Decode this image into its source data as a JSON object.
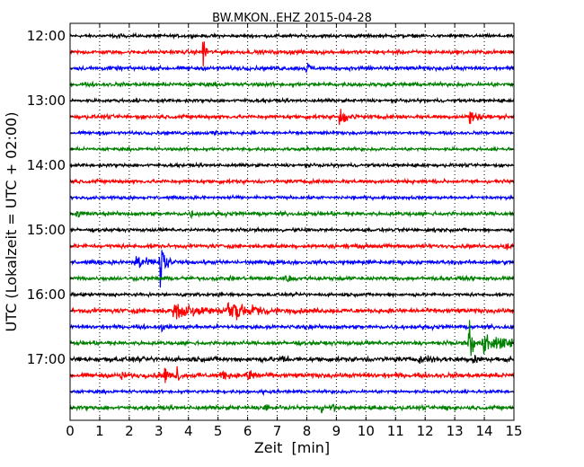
{
  "chart_data": {
    "type": "line",
    "title": "BW.MKON..EHZ 2015-04-28",
    "xlabel": "Zeit  [min]",
    "ylabel": "UTC (Lokalzeit = UTC + 02:00)",
    "xlim": [
      0,
      15
    ],
    "x_ticks": [
      0,
      1,
      2,
      3,
      4,
      5,
      6,
      7,
      8,
      9,
      10,
      11,
      12,
      13,
      14,
      15
    ],
    "x_tick_labels": [
      "0",
      "1",
      "2",
      "3",
      "4",
      "5",
      "6",
      "7",
      "8",
      "9",
      "10",
      "11",
      "12",
      "13",
      "14",
      "15"
    ],
    "y_tick_labels": [
      "12:00",
      "13:00",
      "14:00",
      "15:00",
      "16:00",
      "17:00"
    ],
    "trace_interval_minutes": 15,
    "grid": "vertical dotted",
    "legend": "none",
    "color_cycle": [
      "#000000",
      "#ff0000",
      "#0000ff",
      "#008000"
    ],
    "series": [
      {
        "start": "12:00",
        "noise": 0.2,
        "events": [
          {
            "t": 1.6,
            "amp": 0.3,
            "dur": 0.15
          }
        ]
      },
      {
        "start": "12:15",
        "noise": 0.25,
        "events": [
          {
            "t": 4.5,
            "amp": 1.6,
            "dur": 0.1
          }
        ]
      },
      {
        "start": "12:30",
        "noise": 0.25,
        "events": [
          {
            "t": 8.0,
            "amp": 0.9,
            "dur": 0.1
          },
          {
            "t": 9.8,
            "amp": 0.35,
            "dur": 0.3
          }
        ]
      },
      {
        "start": "12:45",
        "noise": 0.25,
        "events": []
      },
      {
        "start": "13:00",
        "noise": 0.2,
        "events": []
      },
      {
        "start": "13:15",
        "noise": 0.25,
        "events": [
          {
            "t": 9.1,
            "amp": 0.8,
            "dur": 0.3
          },
          {
            "t": 13.5,
            "amp": 0.7,
            "dur": 0.3
          }
        ]
      },
      {
        "start": "13:30",
        "noise": 0.2,
        "events": [
          {
            "t": 4.9,
            "amp": 0.3,
            "dur": 0.1
          }
        ]
      },
      {
        "start": "13:45",
        "noise": 0.2,
        "events": []
      },
      {
        "start": "14:00",
        "noise": 0.2,
        "events": []
      },
      {
        "start": "14:15",
        "noise": 0.25,
        "events": []
      },
      {
        "start": "14:30",
        "noise": 0.2,
        "events": []
      },
      {
        "start": "14:45",
        "noise": 0.25,
        "events": [
          {
            "t": 0.2,
            "amp": 0.35,
            "dur": 0.3
          },
          {
            "t": 4.1,
            "amp": 0.3,
            "dur": 0.1
          }
        ]
      },
      {
        "start": "15:00",
        "noise": 0.2,
        "events": [
          {
            "t": 12.3,
            "amp": 0.35,
            "dur": 0.1
          }
        ]
      },
      {
        "start": "15:15",
        "noise": 0.25,
        "events": [
          {
            "t": 14.7,
            "amp": 0.4,
            "dur": 0.25
          }
        ]
      },
      {
        "start": "15:30",
        "noise": 0.25,
        "events": [
          {
            "t": 2.2,
            "amp": 0.7,
            "dur": 0.4
          },
          {
            "t": 3.05,
            "amp": 2.4,
            "dur": 0.15
          }
        ]
      },
      {
        "start": "15:45",
        "noise": 0.25,
        "events": [
          {
            "t": 7.3,
            "amp": 0.3,
            "dur": 0.3
          }
        ]
      },
      {
        "start": "16:00",
        "noise": 0.2,
        "events": []
      },
      {
        "start": "16:15",
        "noise": 0.3,
        "events": [
          {
            "t": 3.5,
            "amp": 0.8,
            "dur": 1.0
          },
          {
            "t": 5.3,
            "amp": 0.9,
            "dur": 0.9
          }
        ]
      },
      {
        "start": "16:30",
        "noise": 0.25,
        "events": [
          {
            "t": 3.1,
            "amp": 0.4,
            "dur": 0.1
          }
        ]
      },
      {
        "start": "16:45",
        "noise": 0.25,
        "events": [
          {
            "t": 13.5,
            "amp": 2.4,
            "dur": 0.1
          },
          {
            "t": 13.95,
            "amp": 0.9,
            "dur": 0.9
          }
        ]
      },
      {
        "start": "17:00",
        "noise": 0.3,
        "events": [
          {
            "t": 7.2,
            "amp": 0.35,
            "dur": 0.2
          },
          {
            "t": 11.8,
            "amp": 0.35,
            "dur": 0.8
          },
          {
            "t": 13.6,
            "amp": 0.5,
            "dur": 0.3
          }
        ]
      },
      {
        "start": "17:15",
        "noise": 0.3,
        "events": [
          {
            "t": 1.7,
            "amp": 0.5,
            "dur": 0.15
          },
          {
            "t": 3.2,
            "amp": 0.9,
            "dur": 0.1
          },
          {
            "t": 3.6,
            "amp": 1.0,
            "dur": 0.1
          },
          {
            "t": 5.1,
            "amp": 0.5,
            "dur": 0.2
          },
          {
            "t": 6.0,
            "amp": 0.8,
            "dur": 0.2
          }
        ]
      },
      {
        "start": "17:30",
        "noise": 0.2,
        "events": [
          {
            "t": 6.5,
            "amp": 0.3,
            "dur": 0.1
          }
        ]
      },
      {
        "start": "17:45",
        "noise": 0.25,
        "events": [
          {
            "t": 6.6,
            "amp": 0.4,
            "dur": 0.1
          },
          {
            "t": 8.5,
            "amp": 0.4,
            "dur": 0.1
          },
          {
            "t": 8.9,
            "amp": 0.4,
            "dur": 0.1
          },
          {
            "t": 12.7,
            "amp": 0.45,
            "dur": 0.1
          }
        ]
      }
    ]
  }
}
